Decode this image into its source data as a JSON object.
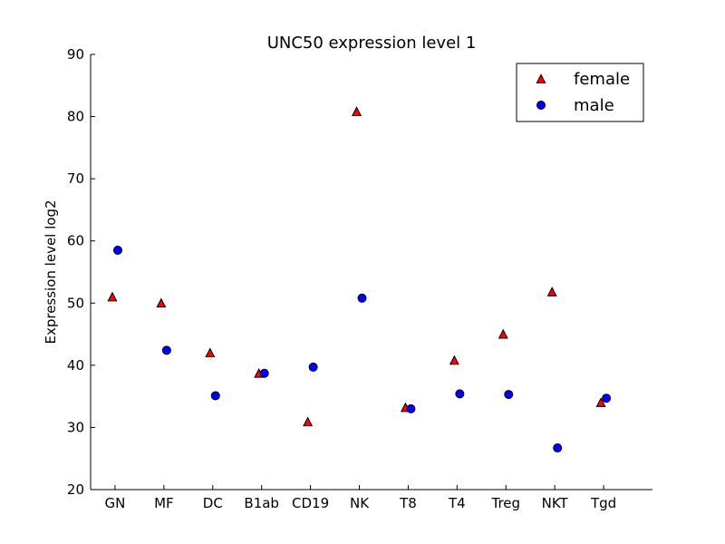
{
  "chart_data": {
    "type": "scatter",
    "title": "UNC50 expression level 1",
    "xlabel": "",
    "ylabel": "Expression level log2",
    "categories": [
      "GN",
      "MF",
      "DC",
      "B1ab",
      "CD19",
      "NK",
      "T8",
      "T4",
      "Treg",
      "NKT",
      "Tgd"
    ],
    "ylim": [
      20,
      90
    ],
    "yticks": [
      20,
      30,
      40,
      50,
      60,
      70,
      80,
      90
    ],
    "grid": false,
    "legend_position": "top-right",
    "series": [
      {
        "name": "female",
        "marker": "triangle",
        "color": "#ff0000",
        "values": [
          51.0,
          50.0,
          42.0,
          38.7,
          30.9,
          80.8,
          33.2,
          40.8,
          45.0,
          51.8,
          34.0
        ]
      },
      {
        "name": "male",
        "marker": "circle",
        "color": "#0000ff",
        "values": [
          58.5,
          42.4,
          35.1,
          38.7,
          39.7,
          50.8,
          33.0,
          35.4,
          35.3,
          26.7,
          34.7
        ]
      }
    ]
  }
}
